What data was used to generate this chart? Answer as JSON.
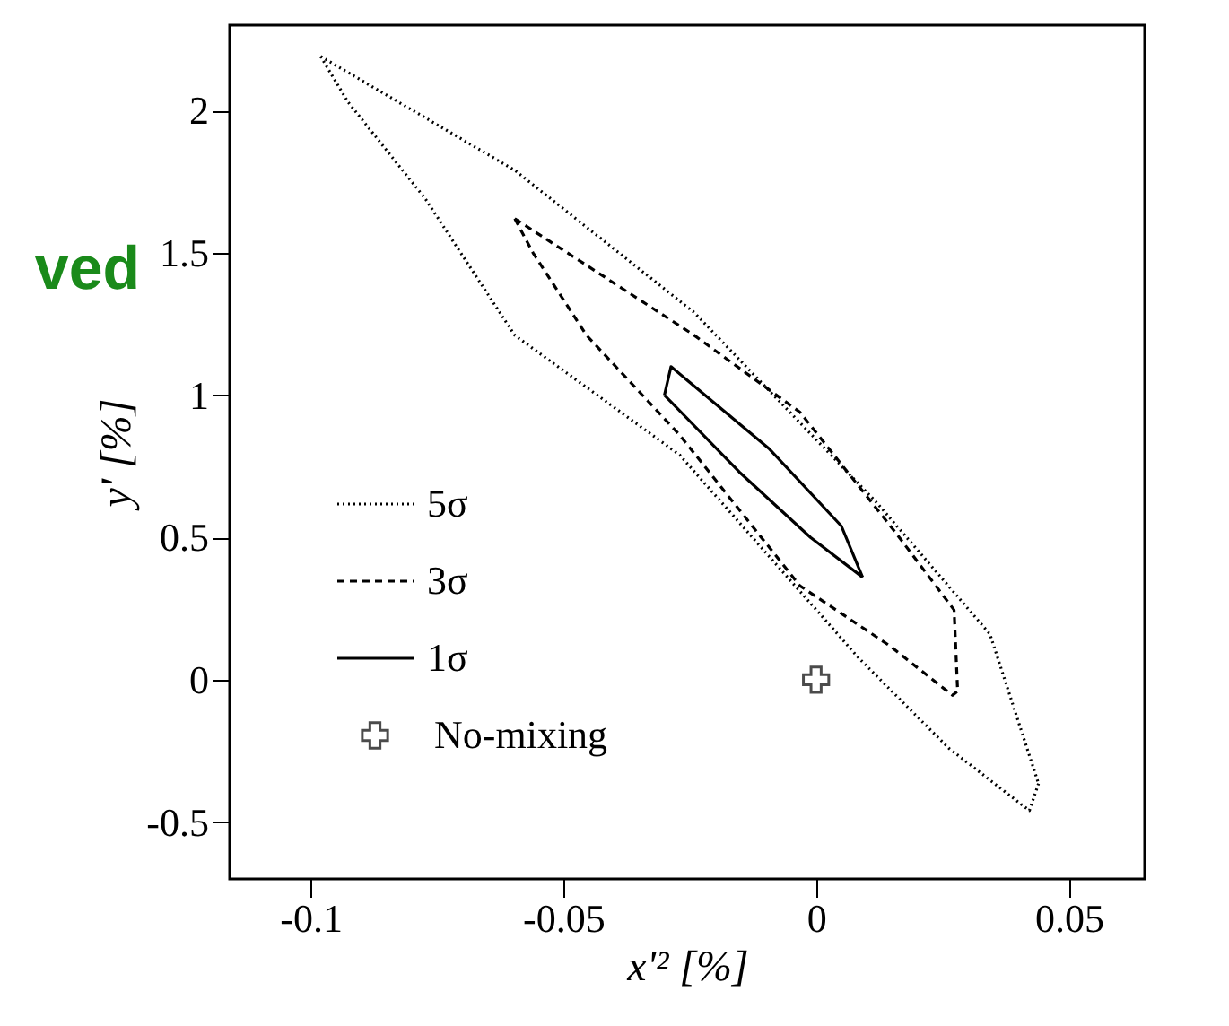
{
  "chart_data": {
    "type": "line",
    "xlabel": "x'² [%]",
    "ylabel": "y' [%]",
    "xlim": [
      -0.116,
      0.065
    ],
    "ylim": [
      -0.7,
      2.3
    ],
    "xticks": [
      {
        "value": -0.1,
        "label": "-0.1"
      },
      {
        "value": -0.05,
        "label": "-0.05"
      },
      {
        "value": 0,
        "label": "0"
      },
      {
        "value": 0.05,
        "label": "0.05"
      }
    ],
    "yticks": [
      {
        "value": -0.5,
        "label": "-0.5"
      },
      0,
      {
        "value": 0.5,
        "label": "0.5"
      },
      1,
      {
        "value": 1.5,
        "label": "1.5"
      },
      2
    ],
    "grid": false,
    "legend": "bottom left",
    "annotations": [
      "ved"
    ],
    "series": [
      {
        "name": "5σ",
        "color": "#000000",
        "line_style": "dotted",
        "x": [
          -0.098,
          -0.0596,
          -0.0241,
          0.0121,
          0.0344,
          0.044
        ],
        "values": [
          2.19,
          1.79,
          1.29,
          0.62,
          0.16,
          -0.365
        ]
      },
      {
        "color": "#000000",
        "line_style": "dotted",
        "x": [
          -0.098,
          -0.0926,
          -0.0773,
          -0.0596,
          -0.027,
          0.0085,
          0.0262,
          0.0422,
          0.044
        ],
        "values": [
          2.19,
          2.03,
          1.69,
          1.21,
          0.79,
          0.075,
          -0.24,
          -0.46,
          -0.365
        ]
      },
      {
        "name": "3σ",
        "color": "#000000",
        "line_style": "dashed",
        "x": [
          -0.0596,
          -0.0241,
          -0.0032,
          0.0156,
          0.0273,
          0.028
        ],
        "values": [
          1.62,
          1.21,
          0.94,
          0.52,
          0.245,
          -0.04
        ]
      },
      {
        "color": "#000000",
        "line_style": "dashed",
        "x": [
          -0.0596,
          -0.056,
          -0.0454,
          -0.027,
          -0.0032,
          0.0145,
          0.027,
          0.028
        ],
        "values": [
          1.62,
          1.5,
          1.21,
          0.86,
          0.33,
          0.12,
          -0.055,
          -0.04
        ]
      },
      {
        "name": "1σ",
        "color": "#000000",
        "line_style": "solid",
        "x": [
          -0.03,
          -0.0287,
          -0.0092,
          0.005,
          0.0092
        ],
        "values": [
          1.0,
          1.1,
          0.81,
          0.54,
          0.36
        ]
      },
      {
        "color": "#000000",
        "line_style": "solid",
        "x": [
          -0.03,
          -0.0152,
          -0.0011,
          0.0092
        ],
        "values": [
          1.0,
          0.73,
          0.5,
          0.36
        ]
      },
      {
        "name": "No-mixing",
        "color": "#000000",
        "type": "scatter",
        "marker": "cross",
        "x": [
          0
        ],
        "values": [
          0
        ]
      }
    ]
  }
}
